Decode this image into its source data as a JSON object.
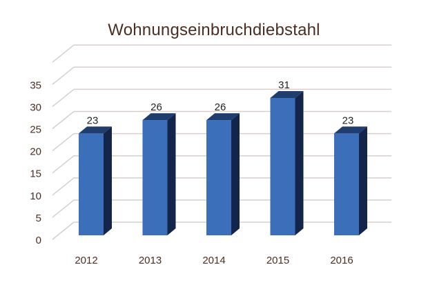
{
  "chart_data": {
    "type": "bar",
    "style": "3d-column",
    "title": "Wohnungseinbruchdiebstahl",
    "categories": [
      "2012",
      "2013",
      "2014",
      "2015",
      "2016"
    ],
    "values": [
      23,
      26,
      26,
      31,
      23
    ],
    "data_labels": [
      "23",
      "26",
      "26",
      "31",
      "23"
    ],
    "xlabel": "",
    "ylabel": "",
    "ylim": [
      0,
      35
    ],
    "yticks": [
      "0",
      "5",
      "10",
      "15",
      "20",
      "25",
      "30",
      "35"
    ],
    "grid": true,
    "legend": "none",
    "colors": {
      "bar_front": "#3b6fba",
      "bar_top": "#1f3d6e",
      "bar_side": "#13254a",
      "grid": "#d6cfcb",
      "text": "#4a2e22"
    }
  }
}
